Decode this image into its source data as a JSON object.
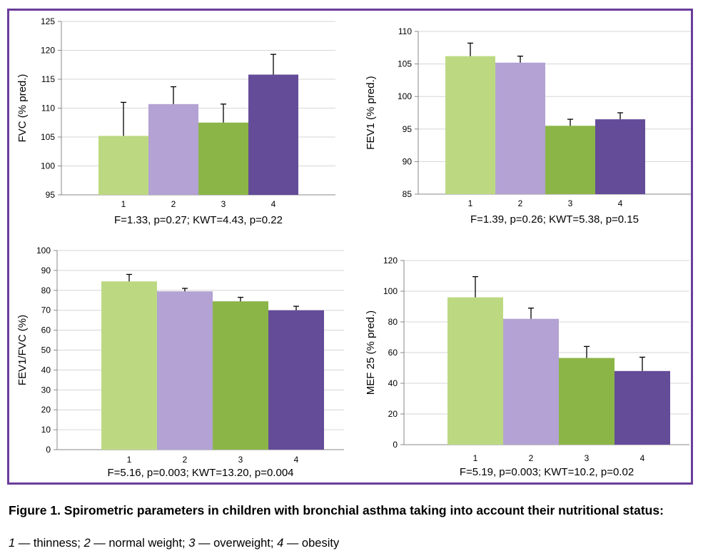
{
  "colors": {
    "frame": "#6a3d9a",
    "bar_1": "#bcd982",
    "bar_2": "#b3a2d3",
    "bar_3": "#8cb548",
    "bar_4": "#644c99",
    "grid": "#d6d6d6",
    "axis": "#888888"
  },
  "chart_data": [
    {
      "type": "bar",
      "categories": [
        "1",
        "2",
        "3",
        "4"
      ],
      "values": [
        105.2,
        110.7,
        107.5,
        115.8
      ],
      "error": [
        5.8,
        3.0,
        3.2,
        3.5
      ],
      "ylabel": "FVC (% pred.)",
      "ylim": [
        95,
        125
      ],
      "yticks": [
        95,
        100,
        105,
        110,
        115,
        120,
        125
      ],
      "ytick_labels": [
        "95",
        "100",
        "105",
        "110",
        "115",
        "120",
        "125"
      ],
      "grid": true,
      "stat_text": "F=1.33, p=0.27; KWT=4.43, p=0.22"
    },
    {
      "type": "bar",
      "categories": [
        "1",
        "2",
        "3",
        "4"
      ],
      "values": [
        106.2,
        105.2,
        95.5,
        96.5
      ],
      "error": [
        2.0,
        1.0,
        1.0,
        1.0
      ],
      "ylabel": "FEV1 (% pred.)",
      "ylim": [
        85,
        110
      ],
      "yticks": [
        85,
        90,
        95,
        100,
        105,
        110
      ],
      "ytick_labels": [
        "85",
        "90",
        "95",
        "100",
        "105",
        "110"
      ],
      "grid": true,
      "stat_text": "F=1.39, p=0.26; KWT=5.38, p=0.15"
    },
    {
      "type": "bar",
      "categories": [
        "1",
        "2",
        "3",
        "4"
      ],
      "values": [
        84.5,
        79.5,
        74.5,
        70.0
      ],
      "error": [
        3.5,
        1.5,
        2.0,
        2.0
      ],
      "ylabel": "FEV1/FVC (%)",
      "ylim": [
        0,
        100
      ],
      "yticks": [
        0,
        10,
        20,
        30,
        40,
        50,
        60,
        70,
        80,
        90,
        100
      ],
      "ytick_labels": [
        "0",
        "10",
        "20",
        "30",
        "40",
        "50",
        "60",
        "70",
        "80",
        "90",
        "100"
      ],
      "grid": true,
      "stat_text": "F=5.16, p=0.003; KWT=13.20, p=0.004"
    },
    {
      "type": "bar",
      "categories": [
        "1",
        "2",
        "3",
        "4"
      ],
      "values": [
        96,
        82,
        56.5,
        48
      ],
      "error": [
        13.5,
        7,
        7.5,
        9
      ],
      "ylabel": "MEF 25 (% pred.)",
      "ylim": [
        0,
        120
      ],
      "yticks": [
        0,
        20,
        40,
        60,
        80,
        100,
        120
      ],
      "ytick_labels": [
        "0",
        "20",
        "40",
        "60",
        "80",
        "100",
        "120"
      ],
      "grid": true,
      "stat_text": "F=5.19, p=0.003; KWT=10.2, p=0.02"
    }
  ],
  "caption": {
    "title": "Figure 1. Spirometric parameters in children with bronchial asthma taking into account their nutritional status:",
    "legend": [
      {
        "num": "1",
        "text": " — thinness; "
      },
      {
        "num": "2",
        "text": " — normal weight; "
      },
      {
        "num": "3",
        "text": " — overweight; "
      },
      {
        "num": "4",
        "text": " — obesity"
      }
    ]
  }
}
